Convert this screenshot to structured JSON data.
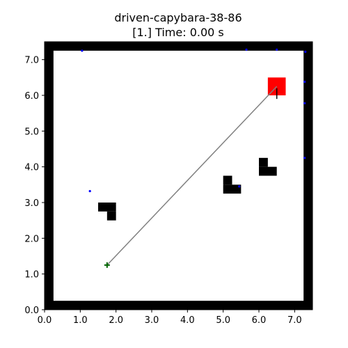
{
  "chart_data": {
    "type": "scatter",
    "title": "driven-capybara-38-86",
    "subtitle": "[1.] Time: 0.00 s",
    "xlabel": "",
    "ylabel": "",
    "xlim": [
      0.0,
      7.5
    ],
    "ylim": [
      0.0,
      7.5
    ],
    "grid": false,
    "x_ticks": [
      "0.0",
      "1.0",
      "2.0",
      "3.0",
      "4.0",
      "5.0",
      "6.0",
      "7.0"
    ],
    "y_ticks": [
      "0.0",
      "1.0",
      "2.0",
      "3.0",
      "4.0",
      "5.0",
      "6.0",
      "7.0"
    ],
    "boundary": {
      "thickness": 0.25,
      "color": "#000000"
    },
    "obstacles": [
      {
        "name": "obstacle-left-top",
        "x": 1.5,
        "y": 2.75,
        "w": 0.5,
        "h": 0.25
      },
      {
        "name": "obstacle-left-bottom",
        "x": 1.75,
        "y": 2.5,
        "w": 0.25,
        "h": 0.25
      },
      {
        "name": "obstacle-middle-top",
        "x": 5.0,
        "y": 3.5,
        "w": 0.25,
        "h": 0.25
      },
      {
        "name": "obstacle-middle-bottom",
        "x": 5.0,
        "y": 3.25,
        "w": 0.5,
        "h": 0.25
      },
      {
        "name": "obstacle-right-top",
        "x": 6.0,
        "y": 4.0,
        "w": 0.25,
        "h": 0.25
      },
      {
        "name": "obstacle-right-bottom",
        "x": 6.0,
        "y": 3.75,
        "w": 0.5,
        "h": 0.25
      }
    ],
    "goal": {
      "x": 6.25,
      "y": 6.0,
      "w": 0.5,
      "h": 0.5,
      "color": "#ff0000"
    },
    "start": {
      "x": 1.75,
      "y": 1.25,
      "color": "#006400"
    },
    "path": {
      "color": "#808080",
      "points": [
        [
          1.75,
          1.25
        ],
        [
          6.5,
          6.25
        ]
      ]
    },
    "agent_heading": {
      "x": 6.5,
      "y": 6.2,
      "dx": 0.0,
      "dy": -0.3
    },
    "blue_points": {
      "color": "#0000ff",
      "points": [
        [
          1.05,
          7.25
        ],
        [
          5.65,
          7.28
        ],
        [
          6.5,
          7.28
        ],
        [
          7.3,
          7.22
        ],
        [
          7.28,
          6.38
        ],
        [
          7.28,
          5.78
        ],
        [
          7.28,
          4.25
        ],
        [
          1.27,
          3.32
        ],
        [
          5.45,
          3.45
        ]
      ]
    }
  }
}
